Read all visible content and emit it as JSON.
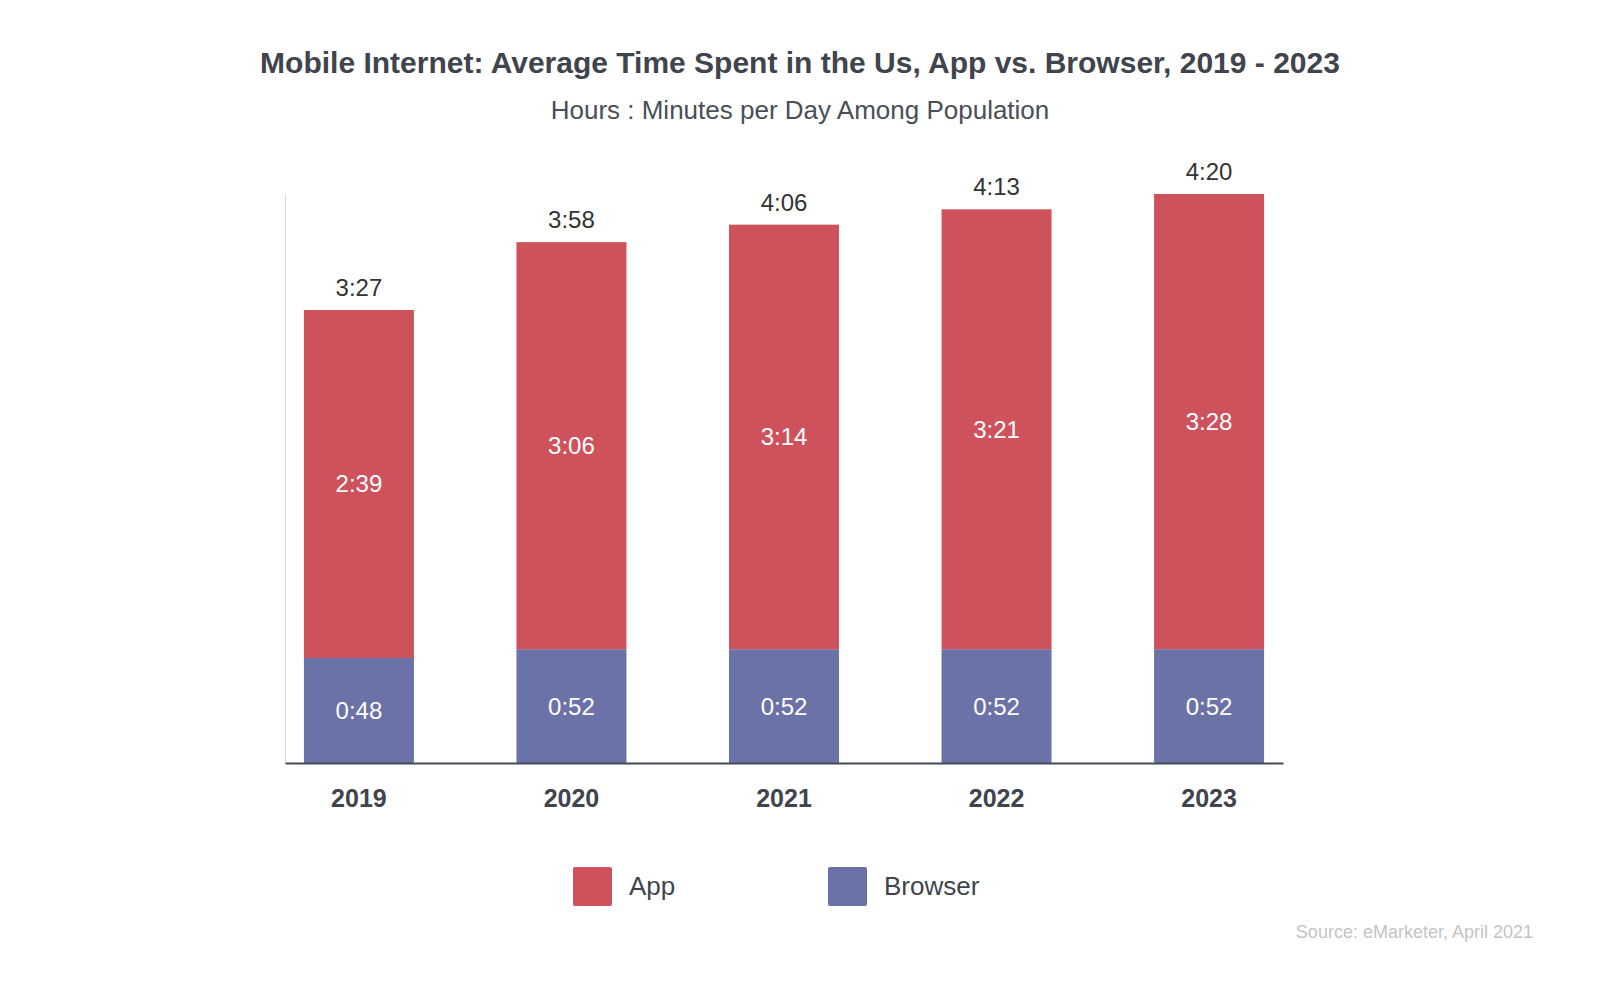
{
  "chart_data": {
    "type": "bar",
    "title": "Mobile Internet: Average Time Spent in the Us, App vs. Browser, 2019 - 2023",
    "subtitle": "Hours : Minutes per Day Among Population",
    "categories": [
      "2019",
      "2020",
      "2021",
      "2022",
      "2023"
    ],
    "series": [
      {
        "name": "App",
        "color": "#cd525c",
        "values": [
          159,
          186,
          194,
          201,
          208
        ],
        "value_labels": [
          "2:39",
          "3:06",
          "3:14",
          "3:21",
          "3:28"
        ]
      },
      {
        "name": "Browser",
        "color": "#6b72a8",
        "values": [
          48,
          52,
          52,
          52,
          52
        ],
        "value_labels": [
          "0:48",
          "0:52",
          "0:52",
          "0:52",
          "0:52"
        ]
      }
    ],
    "totals": [
      207,
      238,
      246,
      253,
      260
    ],
    "total_labels": [
      "3:27",
      "3:58",
      "4:06",
      "4:13",
      "4:20"
    ],
    "ylim": [
      0,
      260
    ],
    "stacked": true,
    "data_labels": true,
    "tick_labels": "x",
    "legend": "bottom",
    "source": "Source: eMarketer, April 2021"
  }
}
